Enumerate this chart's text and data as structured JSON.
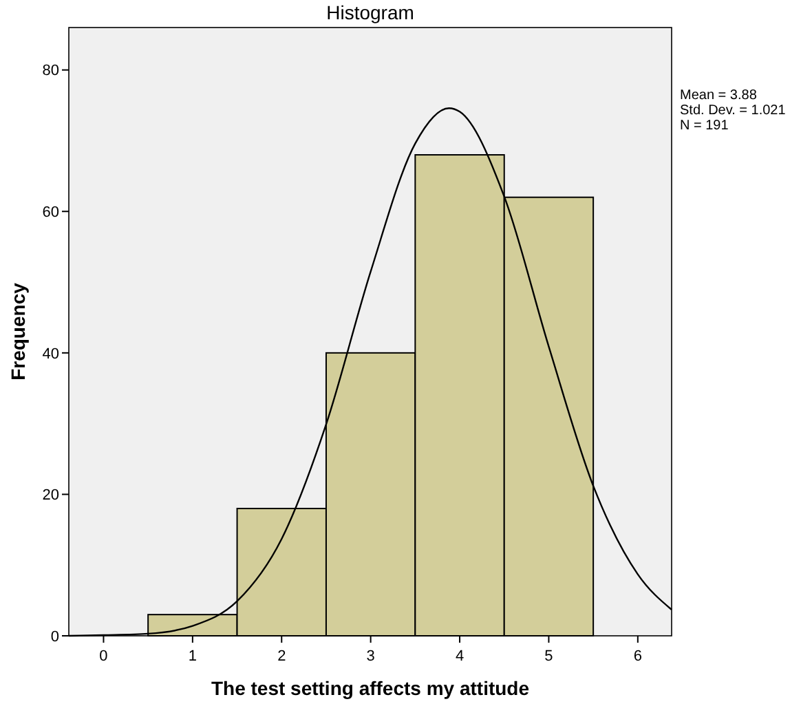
{
  "chart_data": {
    "type": "histogram",
    "title": "Histogram",
    "xlabel": "The test setting affects my attitude",
    "ylabel": "Frequency",
    "bins": [
      0.5,
      1.5,
      2.5,
      3.5,
      4.5,
      5.5
    ],
    "values": [
      3,
      18,
      40,
      68,
      62
    ],
    "color": "#d3ce9a",
    "series": [
      {
        "type": "line",
        "color": "#000000",
        "x": [
          -0.39,
          0,
          0.5,
          1,
          1.5,
          2,
          2.5,
          3,
          3.5,
          3.88,
          4,
          4.5,
          5,
          5.5,
          6,
          6.38
        ],
        "values": [
          0,
          0.1,
          0.3,
          1.4,
          4.9,
          13.7,
          29.9,
          51.5,
          69.6,
          74.6,
          74.1,
          62.1,
          40.9,
          21.2,
          8.7,
          3.7
        ]
      }
    ],
    "xlim": [
      -0.39,
      6.38
    ],
    "xticks": [
      0,
      1,
      2,
      3,
      4,
      5,
      6
    ],
    "ylim": [
      0,
      86
    ],
    "yticks": [
      0,
      20,
      40,
      60,
      80
    ],
    "annotations": [
      "Mean = 3.88",
      "Std. Dev. = 1.021",
      "N = 191"
    ],
    "grid": false
  }
}
